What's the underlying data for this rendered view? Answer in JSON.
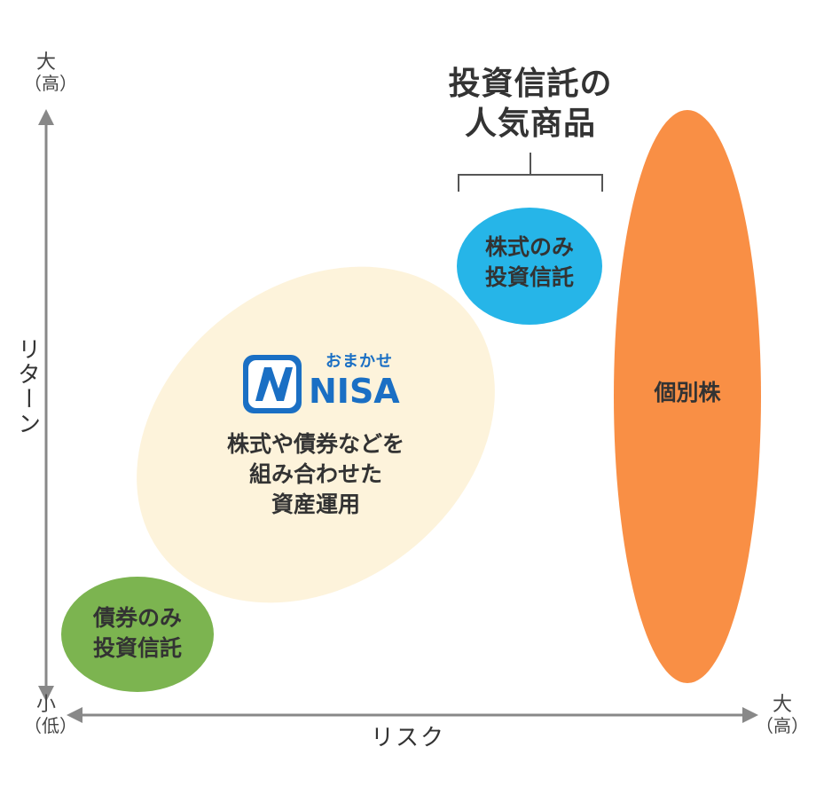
{
  "colors": {
    "axis": "#888888",
    "bond": "#7cb450",
    "omakase": "#fdf2d9",
    "stock_fund": "#26b5e8",
    "individual": "#f98f45",
    "nisa_logo": "#1a6fc4",
    "bracket": "#555555"
  },
  "axes": {
    "y_title": "リターン",
    "y_top_main": "大",
    "y_top_sub": "（高）",
    "y_bottom_main": "小",
    "y_bottom_sub": "（低）",
    "x_title": "リスク",
    "x_right_main": "大",
    "x_right_sub": "（高）"
  },
  "heading": {
    "line1": "投資信託の",
    "line2": "人気商品"
  },
  "bubbles": {
    "bond": {
      "line1": "債券のみ",
      "line2": "投資信託"
    },
    "stock_fund": {
      "line1": "株式のみ",
      "line2": "投資信託"
    },
    "individual": {
      "label": "個別株"
    },
    "omakase": {
      "logo_small": "おまかせ",
      "logo_big": "NISA",
      "line1": "株式や債券などを",
      "line2": "組み合わせた",
      "line3": "資産運用"
    }
  }
}
